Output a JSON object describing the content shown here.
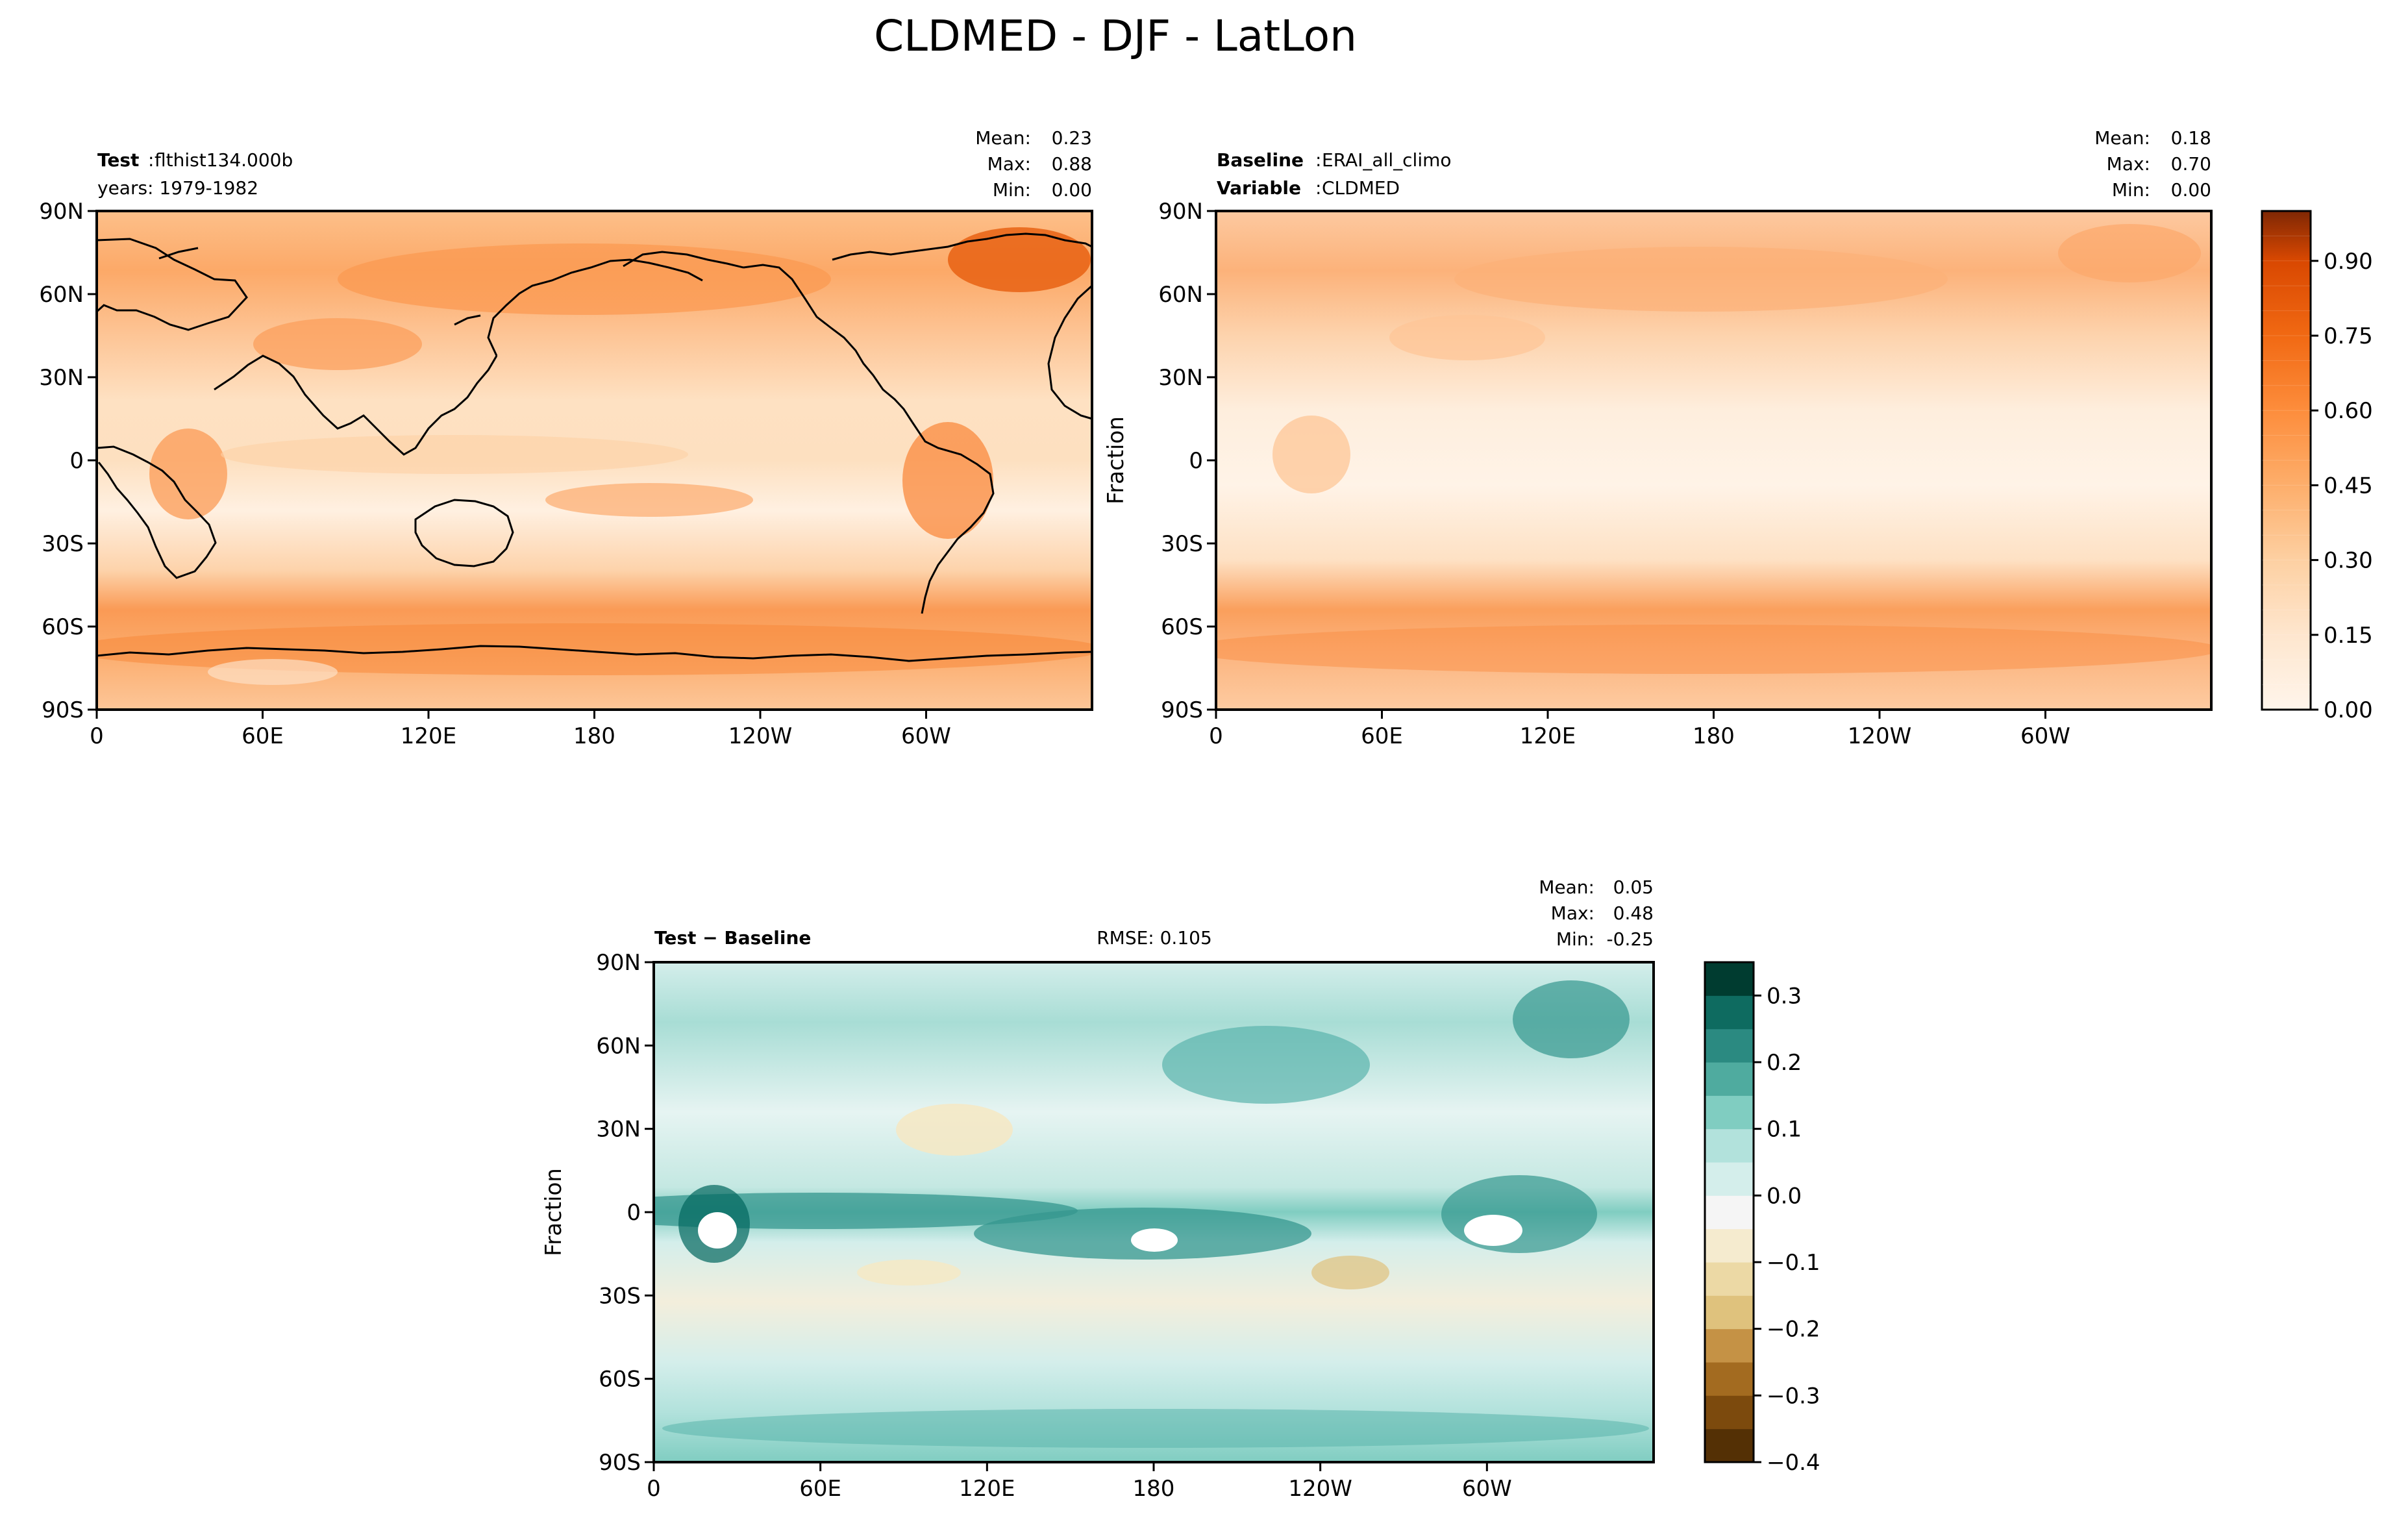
{
  "title": "CLDMED - DJF - LatLon",
  "chart_data": [
    {
      "type": "heatmap",
      "id": "test",
      "subtitle_bold": "Test",
      "subtitle_value": "flthist134.000b",
      "subtitle_line2": "years: 1979-1982",
      "stats": {
        "mean": "0.23",
        "max": "0.88",
        "min": "0.00"
      },
      "ylabel": "",
      "lat_ticks": [
        "90N",
        "60N",
        "30N",
        "0",
        "30S",
        "60S",
        "90S"
      ],
      "lon_ticks": [
        "0",
        "60E",
        "120E",
        "180",
        "120W",
        "60W"
      ],
      "xlim": [
        0,
        360
      ],
      "ylim": [
        -90,
        90
      ],
      "colormap": "Oranges"
    },
    {
      "type": "heatmap",
      "id": "baseline",
      "subtitle_bold": "Baseline",
      "subtitle_value": "ERAI_all_climo",
      "subtitle_bold2": "Variable",
      "subtitle_value2": "CLDMED",
      "stats": {
        "mean": "0.18",
        "max": "0.70",
        "min": "0.00"
      },
      "ylabel": "Fraction",
      "lat_ticks": [
        "90N",
        "60N",
        "30N",
        "0",
        "30S",
        "60S",
        "90S"
      ],
      "lon_ticks": [
        "0",
        "60E",
        "120E",
        "180",
        "120W",
        "60W"
      ],
      "xlim": [
        0,
        360
      ],
      "ylim": [
        -90,
        90
      ],
      "colormap": "Oranges",
      "colorbar": {
        "ticks": [
          "0.00",
          "0.15",
          "0.30",
          "0.45",
          "0.60",
          "0.75",
          "0.90"
        ],
        "range": [
          0,
          1.0
        ],
        "levels": 20
      }
    },
    {
      "type": "heatmap",
      "id": "diff",
      "subtitle_bold": "Test − Baseline",
      "rmse": "RMSE: 0.105",
      "stats": {
        "mean": "0.05",
        "max": "0.48",
        "min": "-0.25"
      },
      "ylabel": "Fraction",
      "lat_ticks": [
        "90N",
        "60N",
        "30N",
        "0",
        "30S",
        "60S",
        "90S"
      ],
      "lon_ticks": [
        "0",
        "60E",
        "120E",
        "180",
        "120W",
        "60W"
      ],
      "xlim": [
        0,
        360
      ],
      "ylim": [
        -90,
        90
      ],
      "colormap": "BrBG",
      "colorbar": {
        "ticks": [
          "0.3",
          "0.2",
          "0.1",
          "0.0",
          "−0.1",
          "−0.2",
          "−0.3",
          "−0.4"
        ],
        "range": [
          -0.4,
          0.35
        ],
        "levels": 15
      }
    }
  ],
  "labels": {
    "mean": "Mean:",
    "max": "Max:",
    "min": "Min:"
  },
  "colors": {
    "oranges": [
      "#fff5eb",
      "#feeddc",
      "#fee4ca",
      "#fdd8b2",
      "#fdc997",
      "#fdb77a",
      "#fda35f",
      "#fd9143",
      "#f67f2a",
      "#ee6a14",
      "#e1560a",
      "#cb4301",
      "#ad3803",
      "#8e2d04",
      "#7f2704"
    ],
    "brbg": [
      "#543005",
      "#7c4a0d",
      "#a36b20",
      "#c59245",
      "#dfc27d",
      "#ecd9a5",
      "#f5ebcf",
      "#f5f5f5",
      "#d4eeeb",
      "#b2e2dc",
      "#80cdc1",
      "#4fab9f",
      "#2b8a81",
      "#0e6b60",
      "#003c30"
    ]
  }
}
